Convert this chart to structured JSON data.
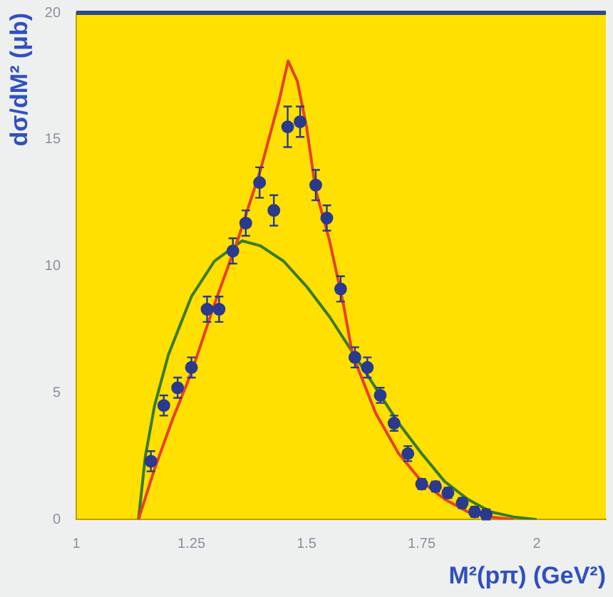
{
  "chart_data": {
    "type": "scatter",
    "xlabel": "M²(pπ) (GeV²)",
    "ylabel": "dσ/dM² (μb)",
    "xlim": [
      1,
      2.15
    ],
    "ylim": [
      0,
      20
    ],
    "xticks": [
      1,
      1.25,
      1.5,
      1.75,
      2
    ],
    "yticks": [
      0,
      5,
      10,
      15,
      20
    ],
    "grid": false,
    "legend": false,
    "series": [
      {
        "marker": "circle",
        "color": "#2a3a8c",
        "x": [
          1.162,
          1.19,
          1.22,
          1.25,
          1.284,
          1.31,
          1.34,
          1.368,
          1.398,
          1.429,
          1.459,
          1.486,
          1.52,
          1.544,
          1.574,
          1.605,
          1.632,
          1.66,
          1.69,
          1.72,
          1.75,
          1.78,
          1.807,
          1.838,
          1.865,
          1.89
        ],
        "values": [
          2.3,
          4.5,
          5.2,
          6.0,
          8.3,
          8.3,
          10.6,
          11.7,
          13.3,
          12.2,
          15.5,
          15.7,
          13.2,
          11.9,
          9.1,
          6.4,
          6.0,
          4.9,
          3.8,
          2.6,
          1.4,
          1.3,
          1.05,
          0.65,
          0.3,
          0.2
        ],
        "errors": [
          0.4,
          0.4,
          0.4,
          0.4,
          0.5,
          0.5,
          0.5,
          0.5,
          0.6,
          0.6,
          0.8,
          0.6,
          0.6,
          0.5,
          0.5,
          0.4,
          0.4,
          0.3,
          0.3,
          0.3,
          0.2,
          0.2,
          0.2,
          0.2,
          0.2,
          0.2
        ]
      },
      {
        "type": "line",
        "marker": "none",
        "color": "#e8402a",
        "x": [
          1.135,
          1.17,
          1.21,
          1.25,
          1.3,
          1.35,
          1.4,
          1.44,
          1.46,
          1.48,
          1.5,
          1.52,
          1.55,
          1.58,
          1.6,
          1.65,
          1.7,
          1.75,
          1.8,
          1.85,
          1.9,
          1.95
        ],
        "values": [
          0,
          2,
          4,
          5.8,
          8.5,
          11,
          13.8,
          16.5,
          18.1,
          17.3,
          15.5,
          13,
          11,
          8.5,
          6.5,
          4.2,
          2.6,
          1.5,
          0.8,
          0.3,
          0.1,
          0
        ]
      },
      {
        "type": "line",
        "marker": "none",
        "color": "#3a7a2a",
        "x": [
          1.135,
          1.15,
          1.17,
          1.2,
          1.25,
          1.3,
          1.36,
          1.4,
          1.45,
          1.5,
          1.55,
          1.6,
          1.65,
          1.7,
          1.75,
          1.8,
          1.85,
          1.9,
          1.95,
          2.0
        ],
        "values": [
          0,
          2.5,
          4.5,
          6.5,
          8.8,
          10.2,
          11,
          10.8,
          10.2,
          9.2,
          8,
          6.6,
          5.2,
          3.8,
          2.6,
          1.5,
          0.8,
          0.3,
          0.1,
          0
        ]
      }
    ]
  }
}
